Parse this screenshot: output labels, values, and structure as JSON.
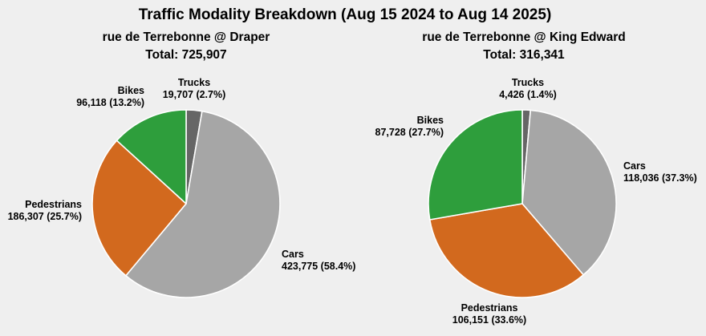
{
  "figure": {
    "title": "Traffic Modality Breakdown (Aug 15 2024 to Aug 14 2025)",
    "background_color": "#efefef",
    "text_color": "#000000"
  },
  "chart_data": [
    {
      "type": "pie",
      "title": "rue de Terrebonne @ Draper",
      "total_label": "Total: 725,907",
      "total": 725907,
      "start_angle_deg": 90,
      "direction": "clockwise",
      "slices": [
        {
          "label": "Trucks",
          "count": 19707,
          "pct": 2.7,
          "value_text": "19,707 (2.7%)",
          "color": "#666666"
        },
        {
          "label": "Cars",
          "count": 423775,
          "pct": 58.4,
          "value_text": "423,775 (58.4%)",
          "color": "#a6a6a6"
        },
        {
          "label": "Pedestrians",
          "count": 186307,
          "pct": 25.7,
          "value_text": "186,307 (25.7%)",
          "color": "#d2691e"
        },
        {
          "label": "Bikes",
          "count": 96118,
          "pct": 13.2,
          "value_text": "96,118 (13.2%)",
          "color": "#2e9e3c"
        }
      ]
    },
    {
      "type": "pie",
      "title": "rue de Terrebonne @ King Edward",
      "total_label": "Total: 316,341",
      "total": 316341,
      "start_angle_deg": 90,
      "direction": "clockwise",
      "slices": [
        {
          "label": "Trucks",
          "count": 4426,
          "pct": 1.4,
          "value_text": "4,426 (1.4%)",
          "color": "#666666"
        },
        {
          "label": "Cars",
          "count": 118036,
          "pct": 37.3,
          "value_text": "118,036 (37.3%)",
          "color": "#a6a6a6"
        },
        {
          "label": "Pedestrians",
          "count": 106151,
          "pct": 33.6,
          "value_text": "106,151 (33.6%)",
          "color": "#d2691e"
        },
        {
          "label": "Bikes",
          "count": 87728,
          "pct": 27.7,
          "value_text": "87,728 (27.7%)",
          "color": "#2e9e3c"
        }
      ]
    }
  ]
}
